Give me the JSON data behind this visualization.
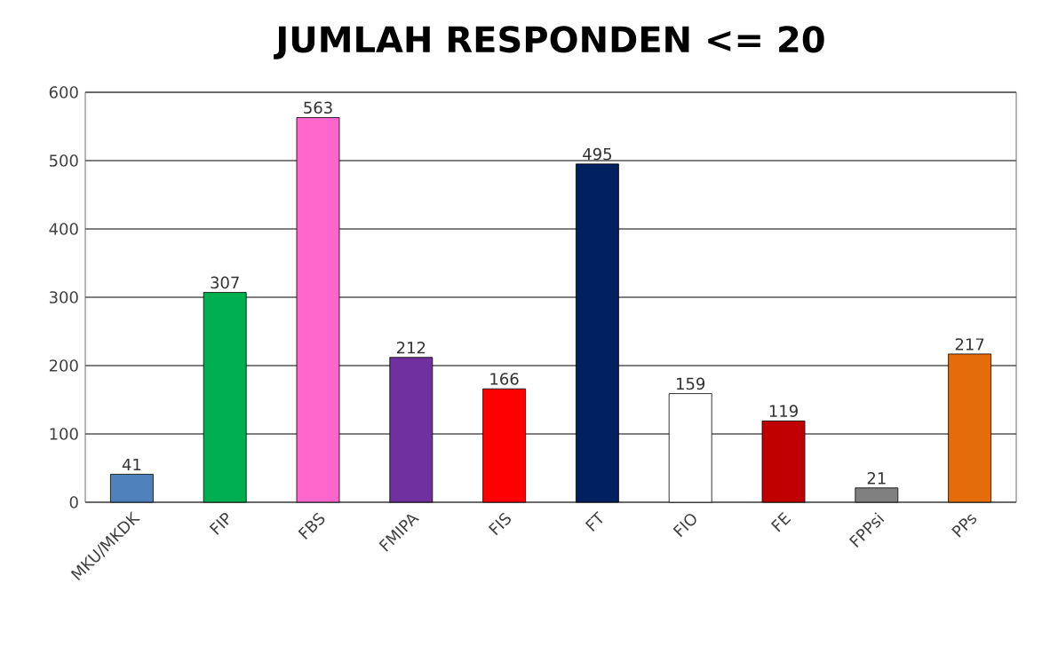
{
  "chart_data": {
    "type": "bar",
    "title": "JUMLAH RESPONDEN <= 20",
    "categories": [
      "MKU/MKDK",
      "FIP",
      "FBS",
      "FMIPA",
      "FIS",
      "FT",
      "FIO",
      "FE",
      "FPPsi",
      "PPs"
    ],
    "values": [
      41,
      307,
      563,
      212,
      166,
      495,
      159,
      119,
      21,
      217
    ],
    "colors": [
      "#4f81bd",
      "#00b050",
      "#ff66cc",
      "#7030a0",
      "#ff0000",
      "#002060",
      "#ffffff",
      "#c00000",
      "#808080",
      "#e46c0a"
    ],
    "ylim": [
      0,
      600
    ],
    "yticks": [
      0,
      100,
      200,
      300,
      400,
      500,
      600
    ],
    "grid": "y",
    "data_labels": true
  }
}
